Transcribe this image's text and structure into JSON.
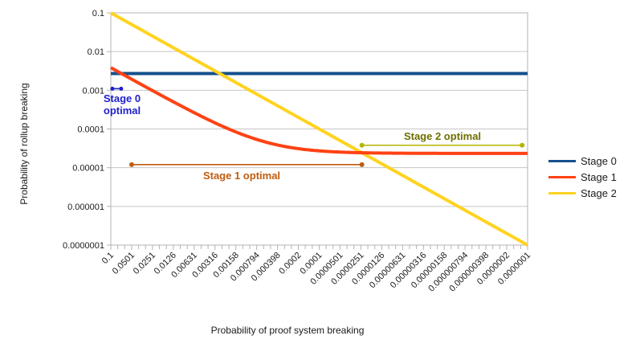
{
  "figure": {
    "x_axis_title": "Probability of proof system breaking",
    "y_axis_title": "Probability of rollup breaking"
  },
  "legend": {
    "items": [
      {
        "label": "Stage 0",
        "color": "#15508c"
      },
      {
        "label": "Stage 1",
        "color": "#ff4214"
      },
      {
        "label": "Stage 2",
        "color": "#ffd320"
      }
    ]
  },
  "chart_data": {
    "type": "line",
    "title": "",
    "xlabel": "Probability of proof system breaking",
    "ylabel": "Probability of rollup breaking",
    "x_scale": "log",
    "y_scale": "log",
    "x_range": [
      0.1,
      1e-07
    ],
    "y_range": [
      0.1,
      1e-07
    ],
    "grid": "horizontal",
    "legend_position": "right",
    "x_tick_values": [
      0.1,
      0.0501,
      0.0251,
      0.0126,
      0.00631,
      0.00316,
      0.00158,
      0.000794,
      0.000398,
      0.0002,
      0.0001,
      5.01e-05,
      2.51e-05,
      1.26e-05,
      6.31e-06,
      3.16e-06,
      1.58e-06,
      7.94e-07,
      3.98e-07,
      2e-07,
      1e-07
    ],
    "x_tick_labels": [
      "0.1",
      "0.0501",
      "0.0251",
      "0.0126",
      "0.00631",
      "0.00316",
      "0.00158",
      "0.000794",
      "0.000398",
      "0.0002",
      "0.0001",
      "0.0000501",
      "0.0000251",
      "0.0000126",
      "0.00000631",
      "0.00000316",
      "0.00000158",
      "0.000000794",
      "0.000000398",
      "0.0000002",
      "0.0000001"
    ],
    "y_tick_values": [
      0.1,
      0.01,
      0.001,
      0.0001,
      1e-05,
      1e-06,
      1e-07
    ],
    "y_tick_labels": [
      "0.1",
      "0.01",
      "0.001",
      "0.0001",
      "0.00001",
      "0.000001",
      "0.0000001"
    ],
    "series": [
      {
        "name": "Stage 0",
        "color": "#15508c",
        "model": {
          "type": "constant",
          "value": 0.0027
        },
        "points": [
          [
            0.1,
            0.0027
          ],
          [
            1e-07,
            0.0027
          ]
        ]
      },
      {
        "name": "Stage 1",
        "color": "#ff4214",
        "model": {
          "type": "linear_floor",
          "slope": 0.0381,
          "intercept": 2.34e-05
        },
        "points": [
          [
            0.1,
            0.00383
          ],
          [
            0.0501,
            0.00193
          ],
          [
            0.0251,
            0.00098
          ],
          [
            0.0126,
            0.000503
          ],
          [
            0.00631,
            0.000264
          ],
          [
            0.00316,
            0.000144
          ],
          [
            0.00158,
            8.36e-05
          ],
          [
            0.000794,
            5.37e-05
          ],
          [
            0.000398,
            3.86e-05
          ],
          [
            0.0002,
            3.1e-05
          ],
          [
            0.0001,
            2.72e-05
          ],
          [
            5.01e-05,
            2.53e-05
          ],
          [
            2.51e-05,
            2.44e-05
          ],
          [
            1.26e-05,
            2.39e-05
          ],
          [
            6.31e-06,
            2.36e-05
          ],
          [
            3.16e-06,
            2.35e-05
          ],
          [
            1.58e-06,
            2.35e-05
          ],
          [
            7.94e-07,
            2.34e-05
          ],
          [
            3.98e-07,
            2.34e-05
          ],
          [
            2e-07,
            2.34e-05
          ],
          [
            1e-07,
            2.34e-05
          ]
        ]
      },
      {
        "name": "Stage 2",
        "color": "#ffd320",
        "model": {
          "type": "identity"
        },
        "points": [
          [
            0.1,
            0.1
          ],
          [
            1e-07,
            1e-07
          ]
        ]
      }
    ],
    "annotations": [
      {
        "id": "stage0-optimal",
        "label": "Stage 0 optimal",
        "x_from": 0.095,
        "x_to": 0.071,
        "y": 0.0011,
        "color": "#1f1fcc",
        "dot_radius": 2.5
      },
      {
        "id": "stage1-optimal",
        "label": "Stage 1 optimal",
        "x_from": 0.0501,
        "x_to": 2.43e-05,
        "y": 1.2e-05,
        "color": "#c05c10",
        "dot_radius": 3
      },
      {
        "id": "stage2-optimal",
        "label": "Stage 2 optimal",
        "x_from": 2.43e-05,
        "x_to": 1.2e-07,
        "y": 3.8e-05,
        "color": "#b4b400",
        "dot_radius": 3
      }
    ]
  }
}
